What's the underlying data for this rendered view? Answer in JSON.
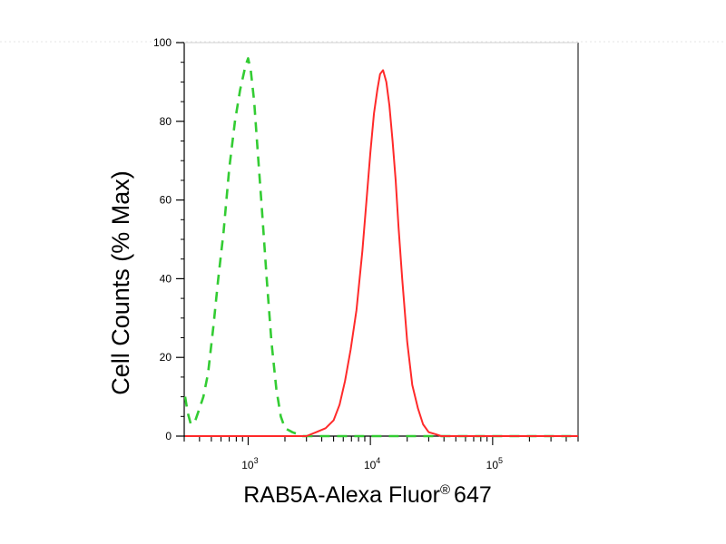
{
  "chart_data": {
    "type": "line",
    "title": "",
    "ylabel": "Cell Counts (% Max)",
    "xlabel": "RAB5A-Alexa Fluor",
    "xlabel_mark": "®",
    "xlabel_suffix": "647",
    "x_scale": "log",
    "xlim": [
      300,
      500000
    ],
    "ylim": [
      0,
      100
    ],
    "x_ticks": [
      {
        "value": 1000,
        "base": "10",
        "exp": "3"
      },
      {
        "value": 10000,
        "base": "10",
        "exp": "4"
      },
      {
        "value": 100000,
        "base": "10",
        "exp": "5"
      }
    ],
    "y_ticks": [
      0,
      20,
      40,
      60,
      80,
      100
    ],
    "grid": false,
    "series": [
      {
        "color": "#33cc33",
        "style": "dashed",
        "x": [
          300,
          320,
          340,
          370,
          400,
          430,
          470,
          520,
          570,
          630,
          700,
          780,
          860,
          950,
          1000,
          1050,
          1120,
          1200,
          1300,
          1420,
          1550,
          1700,
          1850,
          2000,
          2300,
          2800,
          4000,
          6000,
          10000,
          30000,
          100000,
          500000
        ],
        "y": [
          10,
          6,
          3,
          4,
          7,
          10,
          16,
          28,
          40,
          52,
          68,
          80,
          88,
          94,
          96,
          93,
          85,
          72,
          57,
          40,
          24,
          12,
          5,
          2,
          1,
          0,
          0,
          0,
          0,
          0,
          0,
          0
        ]
      },
      {
        "color": "#ff2a2a",
        "style": "solid",
        "x": [
          300,
          2000,
          3000,
          3600,
          4300,
          5000,
          5600,
          6200,
          6900,
          7700,
          8600,
          9300,
          10000,
          10700,
          11400,
          12000,
          12700,
          13500,
          14300,
          15200,
          16100,
          17000,
          18200,
          20000,
          22000,
          24500,
          27000,
          30000,
          34000,
          38000,
          42000,
          60000,
          100000,
          500000
        ],
        "y": [
          0,
          0,
          0,
          1,
          2,
          4,
          8,
          14,
          22,
          32,
          47,
          60,
          72,
          82,
          88,
          92,
          93,
          90,
          84,
          75,
          65,
          53,
          40,
          24,
          13,
          7,
          3,
          1,
          0.5,
          0,
          0,
          0,
          0,
          0
        ]
      }
    ]
  }
}
